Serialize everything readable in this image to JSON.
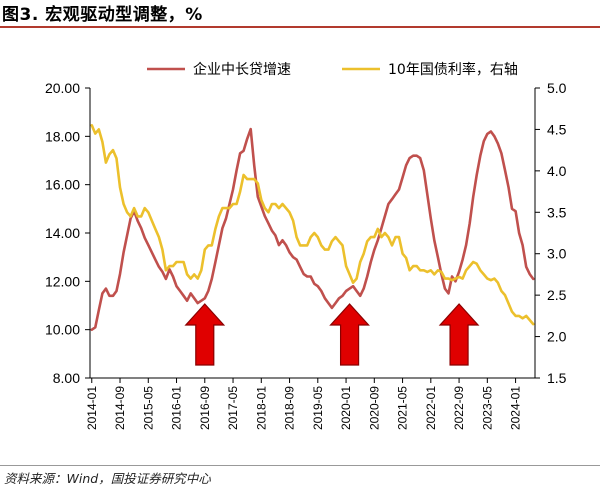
{
  "title": "图3. 宏观驱动型调整，%",
  "source": "资料来源：Wind，国投证券研究中心",
  "chart_data": {
    "type": "line",
    "series": [
      {
        "name": "企业中长贷增速",
        "axis": "left",
        "color": "#c0504d",
        "points": [
          [
            0,
            10.0
          ],
          [
            1,
            10.1
          ],
          [
            2,
            10.8
          ],
          [
            3,
            11.5
          ],
          [
            4,
            11.7
          ],
          [
            5,
            11.4
          ],
          [
            6,
            11.4
          ],
          [
            7,
            11.6
          ],
          [
            8,
            12.3
          ],
          [
            9,
            13.2
          ],
          [
            10,
            13.9
          ],
          [
            11,
            14.6
          ],
          [
            12,
            14.9
          ],
          [
            13,
            14.5
          ],
          [
            14,
            14.2
          ],
          [
            15,
            13.8
          ],
          [
            16,
            13.5
          ],
          [
            17,
            13.2
          ],
          [
            18,
            12.9
          ],
          [
            19,
            12.6
          ],
          [
            20,
            12.4
          ],
          [
            21,
            12.1
          ],
          [
            22,
            12.5
          ],
          [
            23,
            12.2
          ],
          [
            24,
            11.8
          ],
          [
            25,
            11.6
          ],
          [
            26,
            11.4
          ],
          [
            27,
            11.2
          ],
          [
            28,
            11.5
          ],
          [
            29,
            11.3
          ],
          [
            30,
            11.1
          ],
          [
            31,
            11.2
          ],
          [
            32,
            11.3
          ],
          [
            33,
            11.6
          ],
          [
            34,
            12.1
          ],
          [
            35,
            12.8
          ],
          [
            36,
            13.5
          ],
          [
            37,
            14.2
          ],
          [
            38,
            14.6
          ],
          [
            39,
            15.2
          ],
          [
            40,
            15.8
          ],
          [
            41,
            16.6
          ],
          [
            42,
            17.3
          ],
          [
            43,
            17.4
          ],
          [
            44,
            17.9
          ],
          [
            45,
            18.3
          ],
          [
            46,
            16.8
          ],
          [
            47,
            15.5
          ],
          [
            48,
            15.1
          ],
          [
            49,
            14.7
          ],
          [
            50,
            14.4
          ],
          [
            51,
            14.1
          ],
          [
            52,
            13.9
          ],
          [
            53,
            13.5
          ],
          [
            54,
            13.7
          ],
          [
            55,
            13.5
          ],
          [
            56,
            13.2
          ],
          [
            57,
            13.0
          ],
          [
            58,
            12.9
          ],
          [
            59,
            12.6
          ],
          [
            60,
            12.3
          ],
          [
            61,
            12.2
          ],
          [
            62,
            12.2
          ],
          [
            63,
            11.9
          ],
          [
            64,
            11.8
          ],
          [
            65,
            11.6
          ],
          [
            66,
            11.3
          ],
          [
            67,
            11.1
          ],
          [
            68,
            10.9
          ],
          [
            69,
            11.1
          ],
          [
            70,
            11.3
          ],
          [
            71,
            11.4
          ],
          [
            72,
            11.6
          ],
          [
            73,
            11.7
          ],
          [
            74,
            11.8
          ],
          [
            75,
            11.6
          ],
          [
            76,
            11.4
          ],
          [
            77,
            11.7
          ],
          [
            78,
            12.2
          ],
          [
            79,
            12.8
          ],
          [
            80,
            13.3
          ],
          [
            81,
            13.7
          ],
          [
            82,
            14.2
          ],
          [
            83,
            14.7
          ],
          [
            84,
            15.2
          ],
          [
            85,
            15.4
          ],
          [
            86,
            15.6
          ],
          [
            87,
            15.8
          ],
          [
            88,
            16.3
          ],
          [
            89,
            16.8
          ],
          [
            90,
            17.1
          ],
          [
            91,
            17.2
          ],
          [
            92,
            17.2
          ],
          [
            93,
            17.1
          ],
          [
            94,
            16.6
          ],
          [
            95,
            15.6
          ],
          [
            96,
            14.6
          ],
          [
            97,
            13.7
          ],
          [
            98,
            13.0
          ],
          [
            99,
            12.3
          ],
          [
            100,
            11.7
          ],
          [
            101,
            11.5
          ],
          [
            102,
            12.2
          ],
          [
            103,
            12.0
          ],
          [
            104,
            12.4
          ],
          [
            105,
            12.9
          ],
          [
            106,
            13.5
          ],
          [
            107,
            14.4
          ],
          [
            108,
            15.5
          ],
          [
            109,
            16.4
          ],
          [
            110,
            17.2
          ],
          [
            111,
            17.8
          ],
          [
            112,
            18.1
          ],
          [
            113,
            18.2
          ],
          [
            114,
            18.0
          ],
          [
            115,
            17.7
          ],
          [
            116,
            17.3
          ],
          [
            117,
            16.6
          ],
          [
            118,
            15.9
          ],
          [
            119,
            15.0
          ],
          [
            120,
            14.9
          ],
          [
            121,
            14.0
          ],
          [
            122,
            13.5
          ],
          [
            123,
            12.6
          ],
          [
            124,
            12.3
          ],
          [
            125,
            12.1
          ]
        ]
      },
      {
        "name": "10年国债利率，右轴",
        "axis": "right",
        "color": "#ecc02c",
        "points": [
          [
            0,
            4.55
          ],
          [
            1,
            4.45
          ],
          [
            2,
            4.5
          ],
          [
            3,
            4.35
          ],
          [
            4,
            4.1
          ],
          [
            5,
            4.2
          ],
          [
            6,
            4.25
          ],
          [
            7,
            4.15
          ],
          [
            8,
            3.8
          ],
          [
            9,
            3.6
          ],
          [
            10,
            3.5
          ],
          [
            11,
            3.45
          ],
          [
            12,
            3.55
          ],
          [
            13,
            3.45
          ],
          [
            14,
            3.45
          ],
          [
            15,
            3.55
          ],
          [
            16,
            3.5
          ],
          [
            17,
            3.4
          ],
          [
            18,
            3.3
          ],
          [
            19,
            3.2
          ],
          [
            20,
            3.05
          ],
          [
            21,
            2.8
          ],
          [
            22,
            2.85
          ],
          [
            23,
            2.85
          ],
          [
            24,
            2.9
          ],
          [
            25,
            2.9
          ],
          [
            26,
            2.9
          ],
          [
            27,
            2.75
          ],
          [
            28,
            2.7
          ],
          [
            29,
            2.75
          ],
          [
            30,
            2.7
          ],
          [
            31,
            2.8
          ],
          [
            32,
            3.05
          ],
          [
            33,
            3.1
          ],
          [
            34,
            3.1
          ],
          [
            35,
            3.3
          ],
          [
            36,
            3.45
          ],
          [
            37,
            3.55
          ],
          [
            38,
            3.55
          ],
          [
            39,
            3.55
          ],
          [
            40,
            3.6
          ],
          [
            41,
            3.6
          ],
          [
            42,
            3.75
          ],
          [
            43,
            3.95
          ],
          [
            44,
            3.9
          ],
          [
            45,
            3.9
          ],
          [
            46,
            3.9
          ],
          [
            47,
            3.85
          ],
          [
            48,
            3.65
          ],
          [
            49,
            3.55
          ],
          [
            50,
            3.5
          ],
          [
            51,
            3.6
          ],
          [
            52,
            3.6
          ],
          [
            53,
            3.55
          ],
          [
            54,
            3.6
          ],
          [
            55,
            3.55
          ],
          [
            56,
            3.5
          ],
          [
            57,
            3.4
          ],
          [
            58,
            3.2
          ],
          [
            59,
            3.1
          ],
          [
            60,
            3.1
          ],
          [
            61,
            3.1
          ],
          [
            62,
            3.2
          ],
          [
            63,
            3.25
          ],
          [
            64,
            3.2
          ],
          [
            65,
            3.1
          ],
          [
            66,
            3.05
          ],
          [
            67,
            3.05
          ],
          [
            68,
            3.15
          ],
          [
            69,
            3.2
          ],
          [
            70,
            3.15
          ],
          [
            71,
            3.1
          ],
          [
            72,
            2.85
          ],
          [
            73,
            2.75
          ],
          [
            74,
            2.65
          ],
          [
            75,
            2.7
          ],
          [
            76,
            2.9
          ],
          [
            77,
            3.0
          ],
          [
            78,
            3.15
          ],
          [
            79,
            3.2
          ],
          [
            80,
            3.2
          ],
          [
            81,
            3.3
          ],
          [
            82,
            3.2
          ],
          [
            83,
            3.25
          ],
          [
            84,
            3.2
          ],
          [
            85,
            3.1
          ],
          [
            86,
            3.2
          ],
          [
            87,
            3.2
          ],
          [
            88,
            3.0
          ],
          [
            89,
            2.95
          ],
          [
            90,
            2.8
          ],
          [
            91,
            2.85
          ],
          [
            92,
            2.85
          ],
          [
            93,
            2.8
          ],
          [
            94,
            2.8
          ],
          [
            95,
            2.78
          ],
          [
            96,
            2.8
          ],
          [
            97,
            2.75
          ],
          [
            98,
            2.8
          ],
          [
            99,
            2.78
          ],
          [
            100,
            2.7
          ],
          [
            101,
            2.7
          ],
          [
            102,
            2.68
          ],
          [
            103,
            2.7
          ],
          [
            104,
            2.72
          ],
          [
            105,
            2.7
          ],
          [
            106,
            2.8
          ],
          [
            107,
            2.85
          ],
          [
            108,
            2.9
          ],
          [
            109,
            2.88
          ],
          [
            110,
            2.8
          ],
          [
            111,
            2.75
          ],
          [
            112,
            2.7
          ],
          [
            113,
            2.68
          ],
          [
            114,
            2.7
          ],
          [
            115,
            2.65
          ],
          [
            116,
            2.55
          ],
          [
            117,
            2.5
          ],
          [
            118,
            2.4
          ],
          [
            119,
            2.3
          ],
          [
            120,
            2.25
          ],
          [
            121,
            2.25
          ],
          [
            122,
            2.22
          ],
          [
            123,
            2.25
          ],
          [
            124,
            2.2
          ],
          [
            125,
            2.15
          ]
        ]
      }
    ],
    "x_labels": [
      "2014-01",
      "2014-09",
      "2015-05",
      "2016-01",
      "2016-09",
      "2017-05",
      "2018-01",
      "2018-09",
      "2019-05",
      "2020-01",
      "2020-09",
      "2021-05",
      "2022-01",
      "2022-09",
      "2023-05",
      "2024-01"
    ],
    "x_label_step_months": 8,
    "left_axis": {
      "ylim": [
        8,
        20
      ],
      "ticks": [
        "8.00",
        "10.00",
        "12.00",
        "14.00",
        "16.00",
        "18.00",
        "20.00"
      ]
    },
    "right_axis": {
      "ylim": [
        1.5,
        5.0
      ],
      "ticks": [
        "1.5",
        "2.0",
        "2.5",
        "3.0",
        "3.5",
        "4.0",
        "4.5",
        "5.0"
      ]
    },
    "legend_position": "top",
    "annotations": [
      {
        "kind": "up-arrow",
        "x_month": 32,
        "color": "#e00000"
      },
      {
        "kind": "up-arrow",
        "x_month": 73,
        "color": "#e00000"
      },
      {
        "kind": "up-arrow",
        "x_month": 104,
        "color": "#e00000"
      }
    ]
  }
}
